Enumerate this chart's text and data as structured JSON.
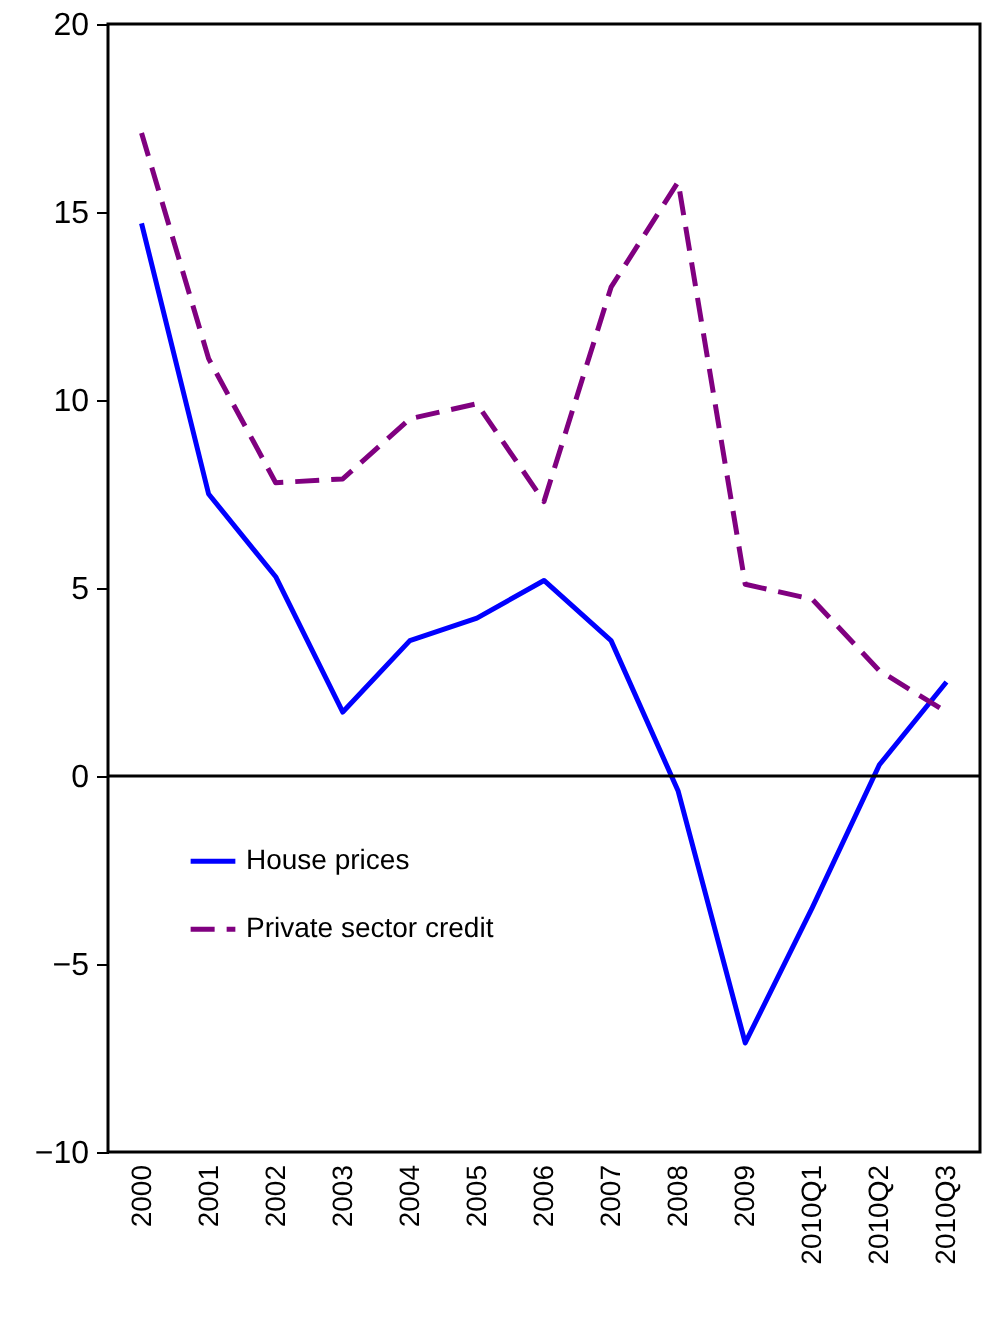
{
  "chart_data": {
    "type": "line",
    "categories": [
      "2000",
      "2001",
      "2002",
      "2003",
      "2004",
      "2005",
      "2006",
      "2007",
      "2008",
      "2009",
      "2010Q1",
      "2010Q2",
      "2010Q3"
    ],
    "series": [
      {
        "name": "House prices",
        "color": "#0000ff",
        "line_style": "solid",
        "values": [
          14.7,
          7.5,
          5.3,
          1.7,
          3.6,
          4.2,
          5.2,
          3.6,
          -0.4,
          -7.1,
          -3.5,
          0.3,
          2.5
        ]
      },
      {
        "name": "Private sector credit",
        "color": "#800080",
        "line_style": "dashed",
        "values": [
          17.1,
          11.1,
          7.8,
          7.9,
          9.5,
          9.9,
          7.3,
          13.0,
          15.8,
          5.1,
          4.7,
          2.8,
          1.7
        ]
      }
    ],
    "ylim": [
      -10,
      20
    ],
    "yticks": [
      -10,
      -5,
      0,
      5,
      10,
      15,
      20
    ],
    "ref_lines": [
      {
        "axis": "y",
        "value": 0,
        "color": "#000000"
      }
    ],
    "grid": false,
    "legend": "left",
    "marker": "none"
  }
}
